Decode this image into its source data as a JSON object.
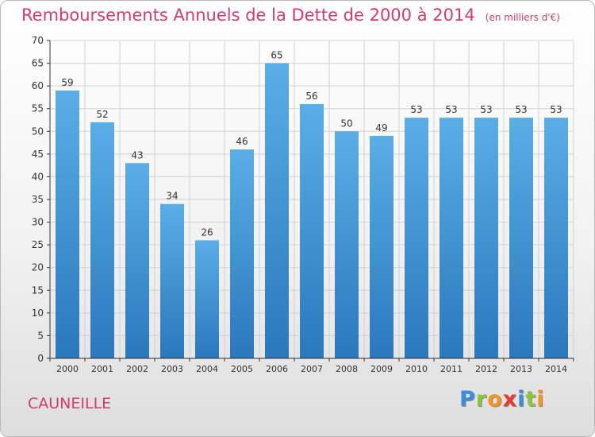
{
  "header": {
    "title": "Remboursements Annuels de la Dette de 2000 à 2014",
    "unit": "(en milliers d'€)"
  },
  "footer": {
    "commune": "CAUNEILLE",
    "brand": [
      "P",
      "r",
      "o",
      "x",
      "i",
      "t",
      "i"
    ],
    "brand_colors": [
      "#3a8fd9",
      "#8cc63f",
      "#f7931e",
      "#e8392a",
      "#3a8fd9",
      "#8cc63f",
      "#f7931e"
    ]
  },
  "colors": {
    "title": "#d43a6e",
    "bar_light": "#5aaee6",
    "bar_dark": "#2a78bc",
    "axis": "#333333",
    "grid": "#d2d2d2"
  },
  "chart_data": {
    "type": "bar",
    "title": "Remboursements Annuels de la Dette de 2000 à 2014",
    "ylabel": "(en milliers d'€)",
    "xlabel": "",
    "categories": [
      "2000",
      "2001",
      "2002",
      "2003",
      "2004",
      "2005",
      "2006",
      "2007",
      "2008",
      "2009",
      "2010",
      "2011",
      "2012",
      "2013",
      "2014"
    ],
    "values": [
      59,
      52,
      43,
      34,
      26,
      46,
      65,
      56,
      50,
      49,
      53,
      53,
      53,
      53,
      53
    ],
    "ylim": [
      0,
      70
    ],
    "yticks": [
      0,
      5,
      10,
      15,
      20,
      25,
      30,
      35,
      40,
      45,
      50,
      55,
      60,
      65,
      70
    ],
    "grid": true
  }
}
